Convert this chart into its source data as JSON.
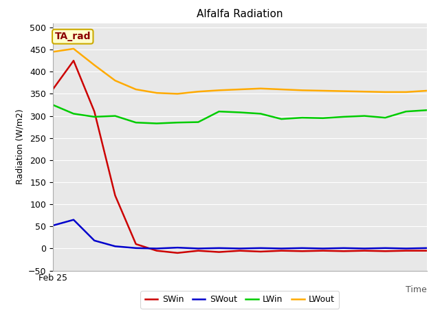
{
  "title": "Alfalfa Radiation",
  "xlabel": "Time",
  "ylabel": "Radiation (W/m2)",
  "ylim": [
    -50,
    510
  ],
  "yticks": [
    -50,
    0,
    50,
    100,
    150,
    200,
    250,
    300,
    350,
    400,
    450,
    500
  ],
  "x_label_text": "Feb 25",
  "annotation": "TA_rad",
  "fig_bg_color": "#ffffff",
  "plot_bg_color": "#e8e8e8",
  "x_points": [
    0,
    1,
    2,
    3,
    4,
    5,
    6,
    7,
    8,
    9,
    10,
    11,
    12,
    13,
    14,
    15,
    16,
    17,
    18
  ],
  "SWin": [
    360,
    425,
    310,
    120,
    10,
    -5,
    -10,
    -5,
    -8,
    -5,
    -7,
    -5,
    -6,
    -5,
    -6,
    -5,
    -6,
    -5,
    -5
  ],
  "SWout": [
    52,
    65,
    18,
    5,
    1,
    0,
    2,
    0,
    1,
    0,
    1,
    0,
    1,
    0,
    1,
    0,
    1,
    0,
    1
  ],
  "LWin": [
    325,
    305,
    298,
    300,
    285,
    283,
    285,
    286,
    310,
    308,
    305,
    293,
    296,
    295,
    298,
    300,
    296,
    310,
    313
  ],
  "LWout": [
    445,
    452,
    415,
    380,
    360,
    352,
    350,
    355,
    358,
    360,
    362,
    360,
    358,
    357,
    356,
    355,
    354,
    354,
    357
  ],
  "SWin_color": "#cc0000",
  "SWout_color": "#0000cc",
  "LWin_color": "#00cc00",
  "LWout_color": "#ffaa00",
  "line_width": 1.8,
  "legend_labels": [
    "SWin",
    "SWout",
    "LWin",
    "LWout"
  ],
  "title_fontsize": 11,
  "axis_label_fontsize": 9,
  "tick_fontsize": 9,
  "annotation_fontsize": 10,
  "legend_fontsize": 9
}
